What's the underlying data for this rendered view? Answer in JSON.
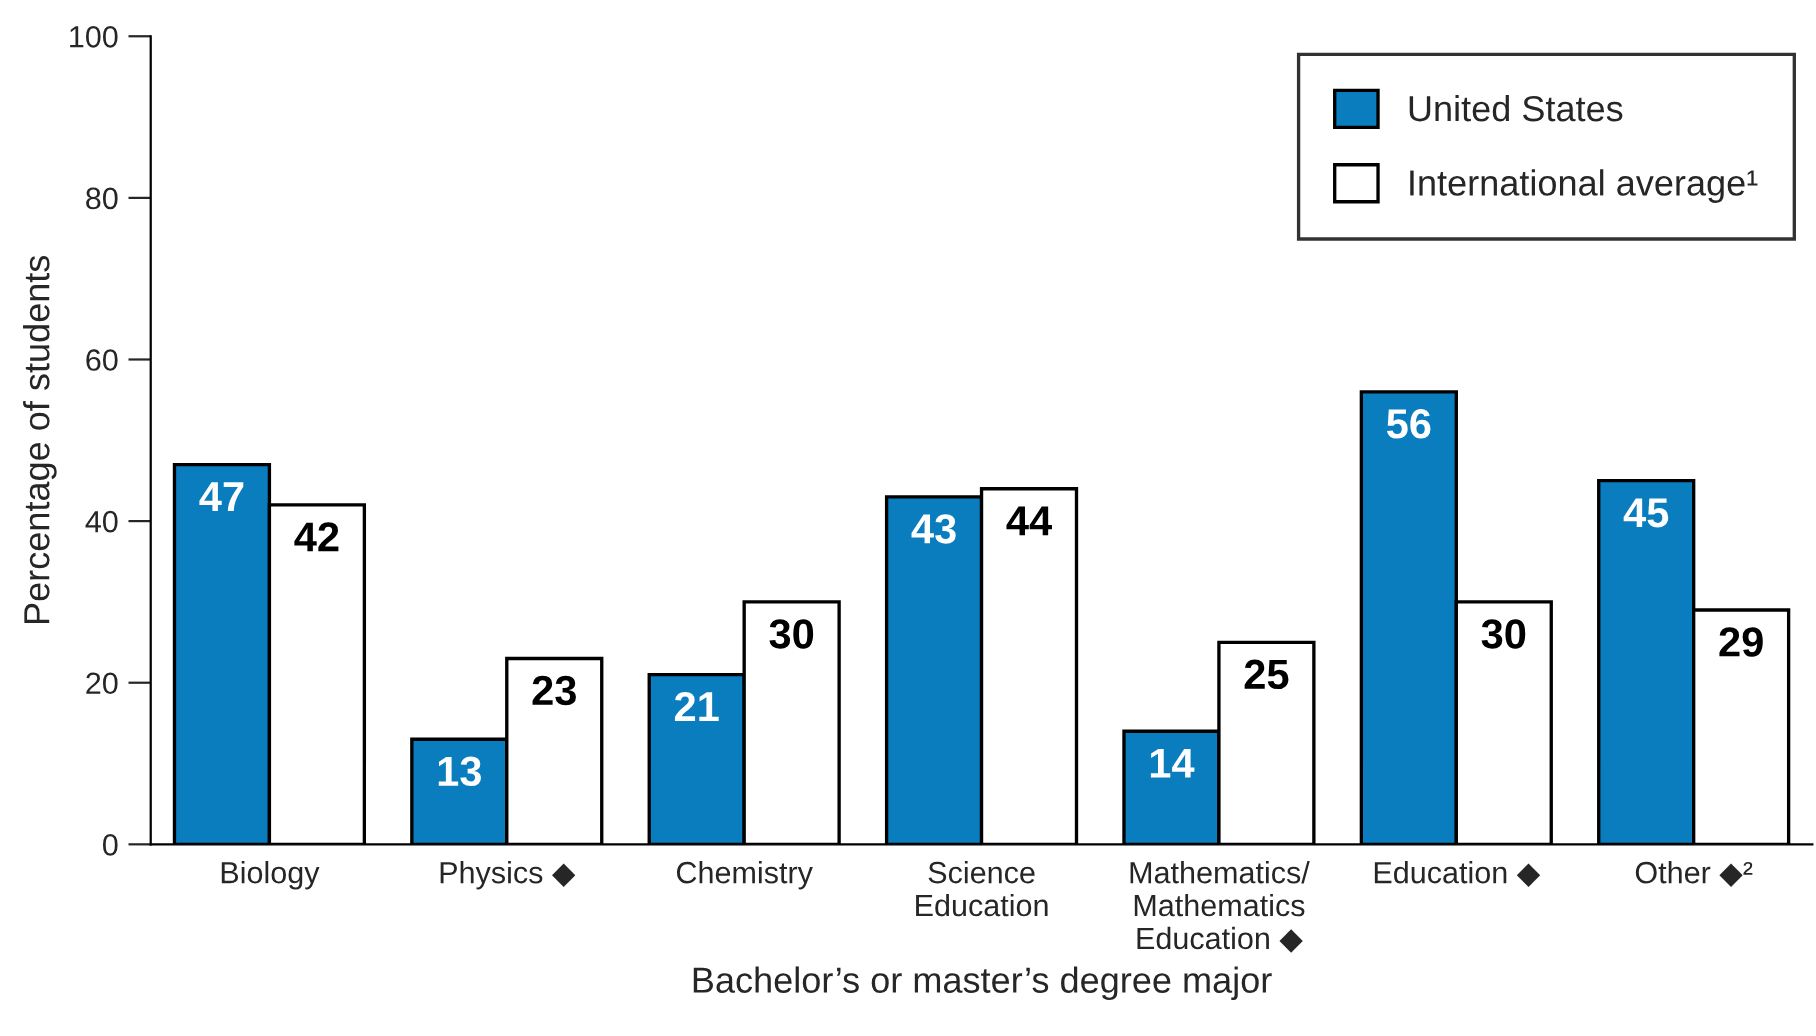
{
  "chart_data": {
    "type": "bar",
    "xlabel": "Bachelor’s or master’s degree major",
    "ylabel": "Percentage of students",
    "categories": [
      "Biology",
      "Physics ◆",
      "Chemistry",
      "Science\nEducation",
      "Mathematics/\nMathematics\nEducation ◆",
      "Education ◆",
      "Other ◆²"
    ],
    "series": [
      {
        "name": "United States",
        "color": "#0a7dbf",
        "values": [
          47,
          13,
          21,
          43,
          14,
          56,
          45
        ]
      },
      {
        "name": "International average¹",
        "color": "#ffffff",
        "values": [
          42,
          23,
          30,
          44,
          25,
          30,
          29
        ]
      }
    ],
    "ylim": [
      0,
      100
    ],
    "yticks": [
      0,
      20,
      40,
      60,
      80,
      100
    ],
    "data_labels": true,
    "grid": false,
    "legend": "top right"
  }
}
